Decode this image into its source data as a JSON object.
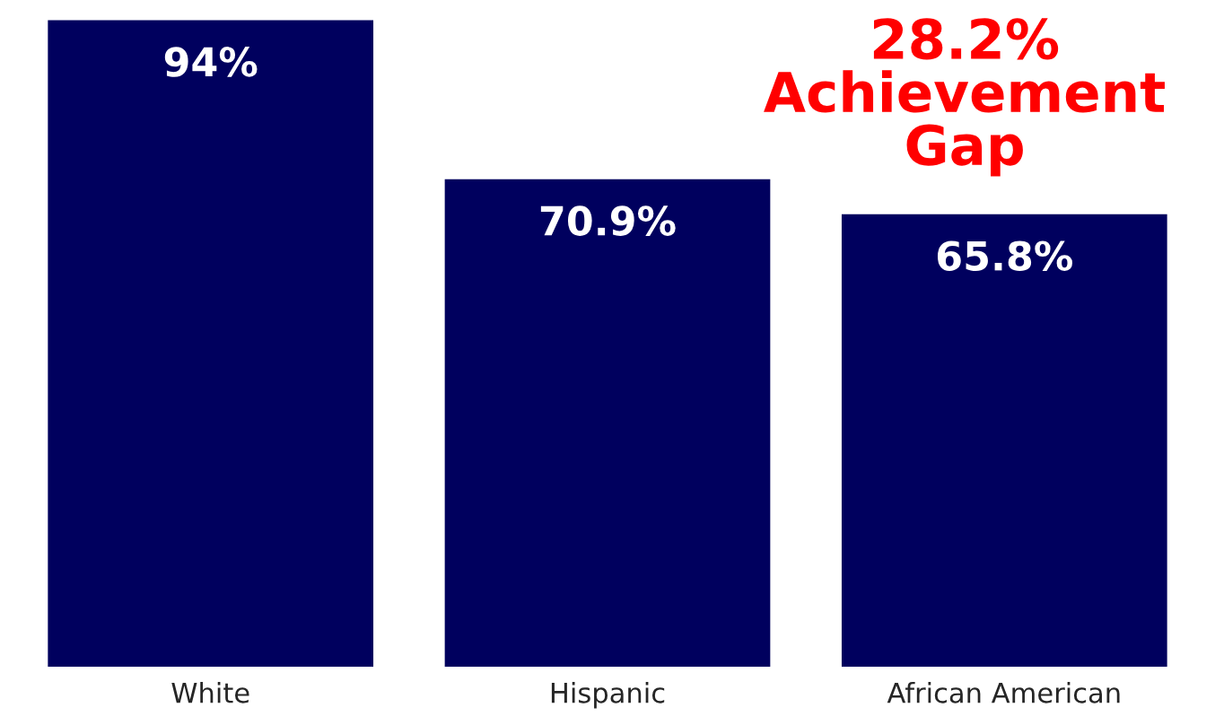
{
  "chart_data": {
    "type": "bar",
    "categories": [
      "White",
      "Hispanic",
      "African American"
    ],
    "values": [
      94,
      70.9,
      65.8
    ],
    "value_labels": [
      "94%",
      "70.9%",
      "65.8%"
    ],
    "color": "#00005e",
    "annotations": [
      "28.2%\nAchievement\nGap"
    ],
    "grid": false,
    "legend": false
  }
}
